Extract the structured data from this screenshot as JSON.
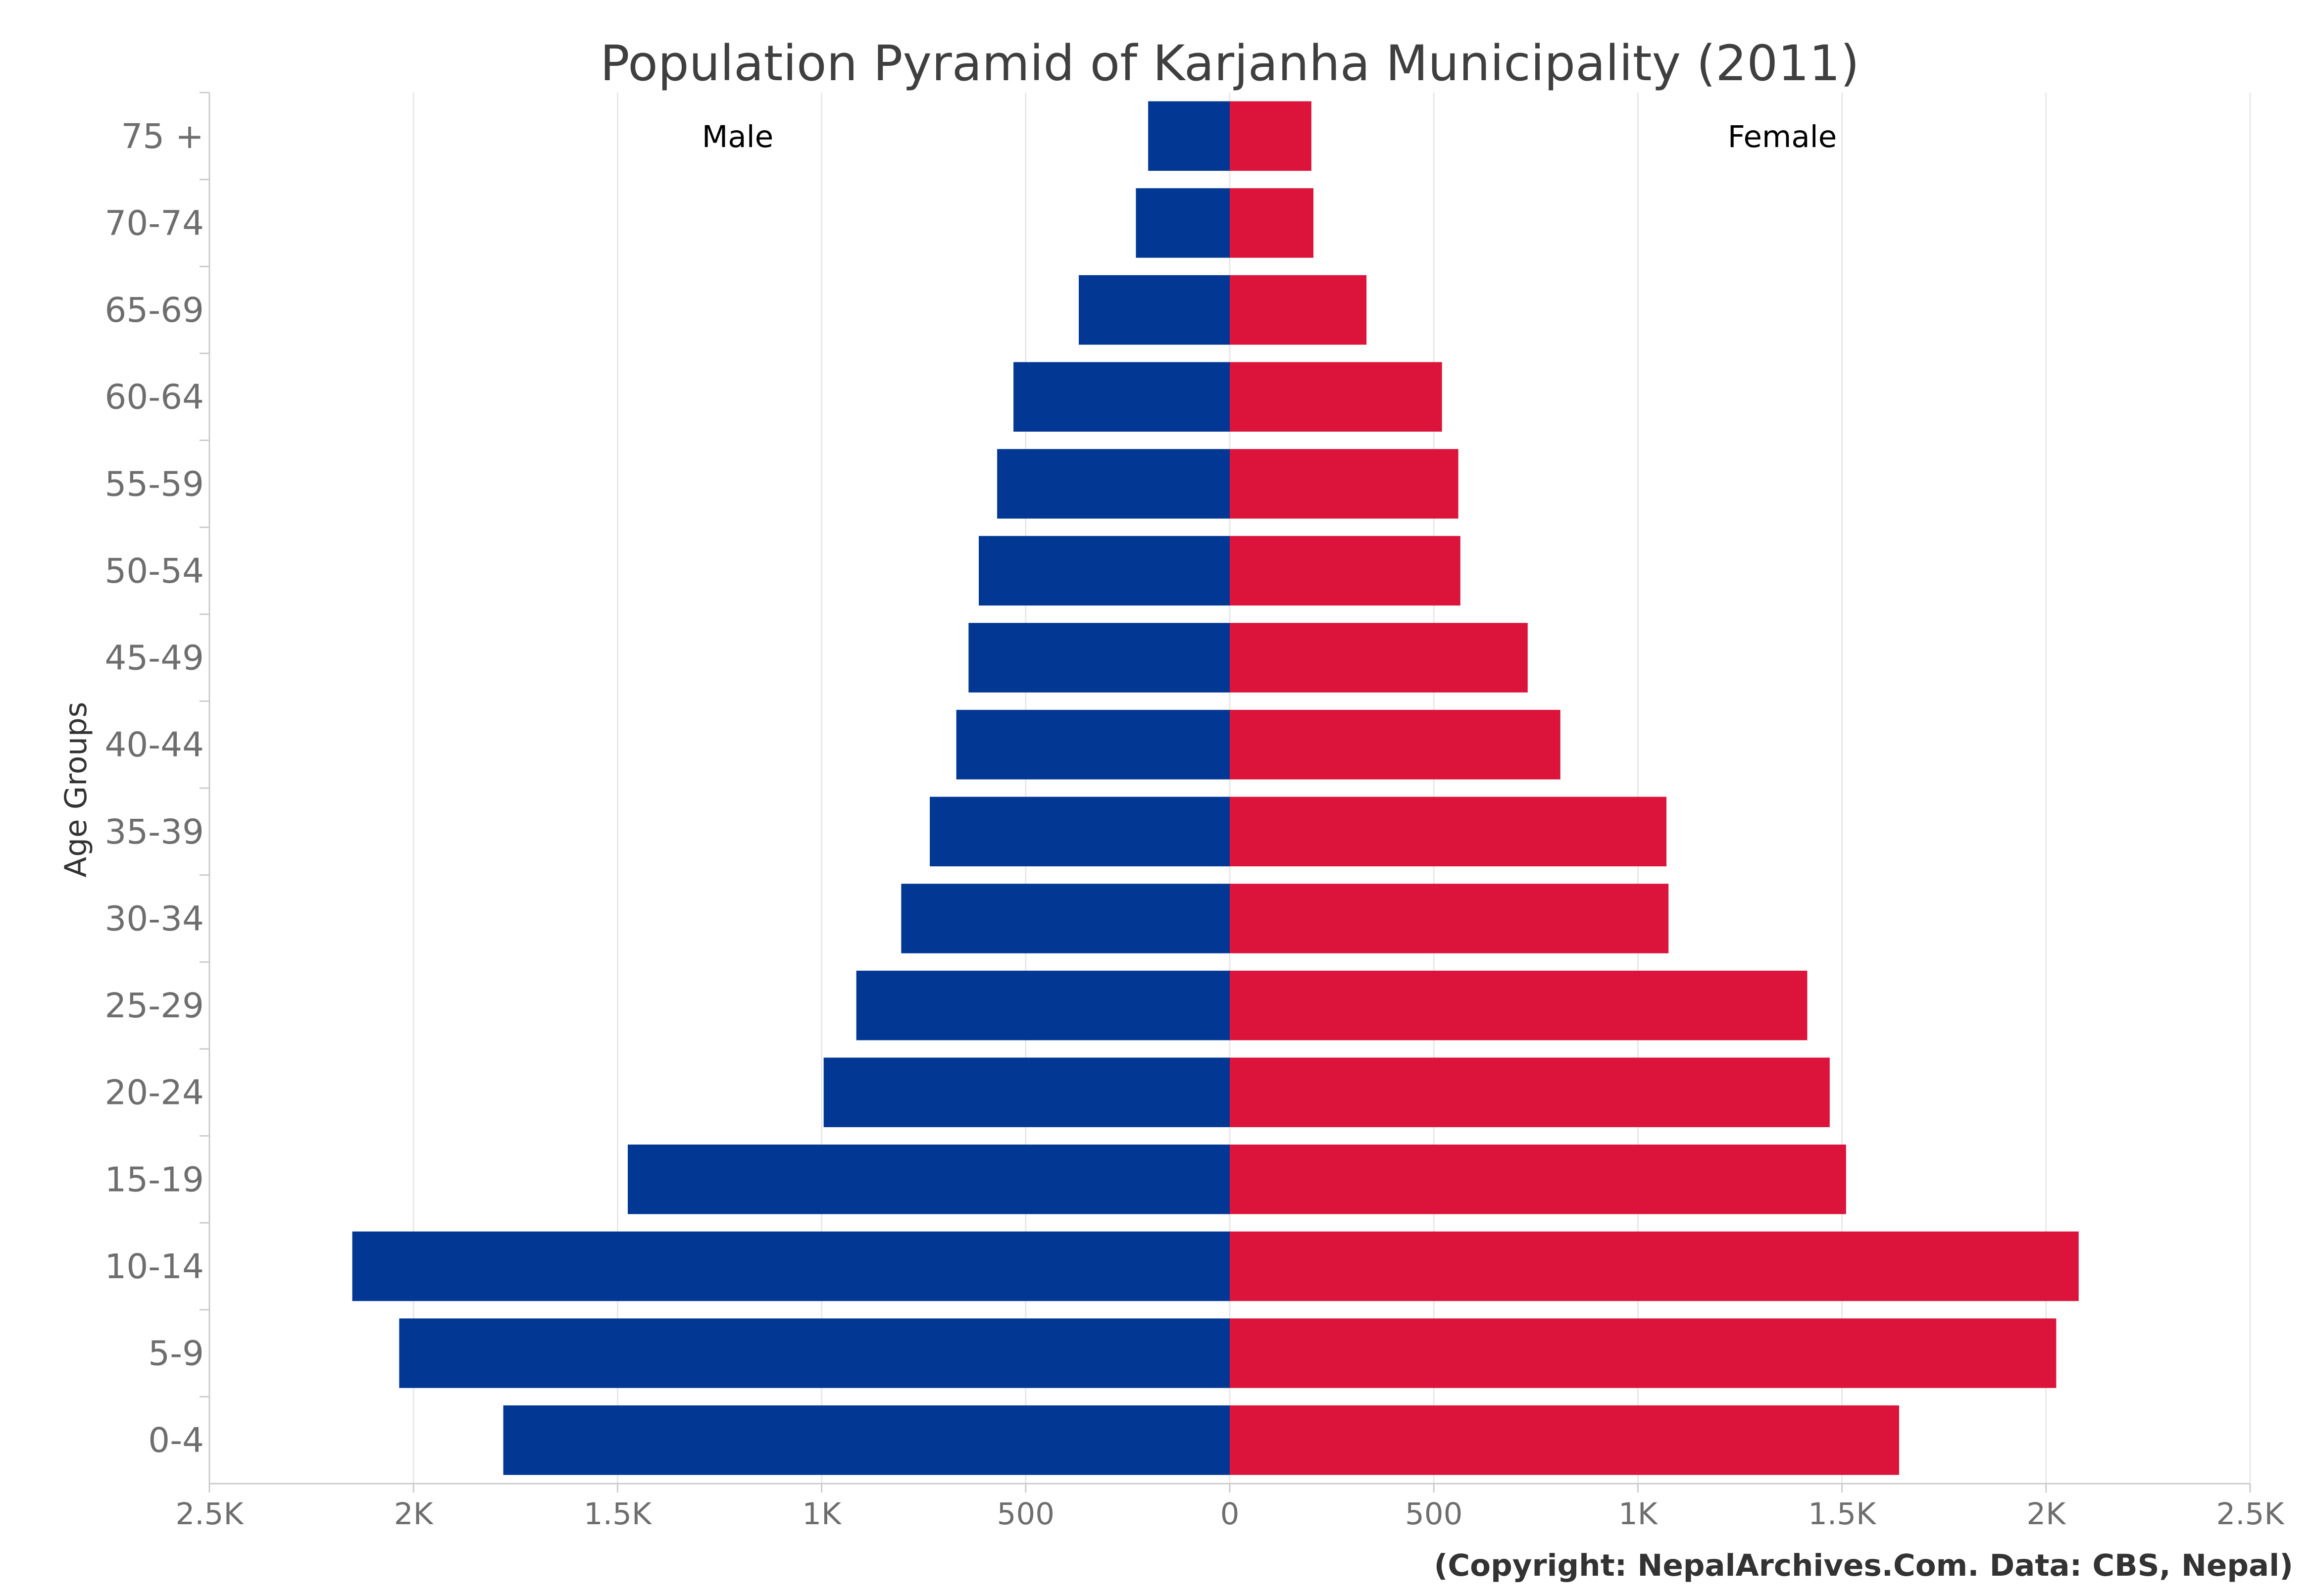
{
  "chart_data": {
    "type": "bar",
    "orientation": "horizontal-pyramid",
    "title": "Population Pyramid of Karjanha Municipality (2011)",
    "ylabel": "Age Groups",
    "xlabel": "",
    "categories": [
      "75 +",
      "70-74",
      "65-69",
      "60-64",
      "55-59",
      "50-54",
      "45-49",
      "40-44",
      "35-39",
      "30-34",
      "25-29",
      "20-24",
      "15-19",
      "10-14",
      "5-9",
      "0-4"
    ],
    "series": [
      {
        "name": "Male",
        "color": "#023894",
        "side": "left",
        "values": [
          200,
          230,
          370,
          530,
          570,
          615,
          640,
          670,
          735,
          805,
          915,
          995,
          1475,
          2150,
          2035,
          1780
        ]
      },
      {
        "name": "Female",
        "color": "#dc143c",
        "side": "right",
        "values": [
          200,
          205,
          335,
          520,
          560,
          565,
          730,
          810,
          1070,
          1075,
          1415,
          1470,
          1510,
          2080,
          2025,
          1640
        ]
      }
    ],
    "xlim": [
      -2500,
      2500
    ],
    "xticks": [
      -2500,
      -2000,
      -1500,
      -1000,
      -500,
      0,
      500,
      1000,
      1500,
      2000,
      2500
    ],
    "xtick_labels": [
      "2.5K",
      "2K",
      "1.5K",
      "1K",
      "500",
      "0",
      "500",
      "1K",
      "1.5K",
      "2K",
      "2.5K"
    ],
    "grid": true,
    "legend": "none",
    "credit": "(Copyright: NepalArchives.Com. Data: CBS, Nepal)"
  }
}
